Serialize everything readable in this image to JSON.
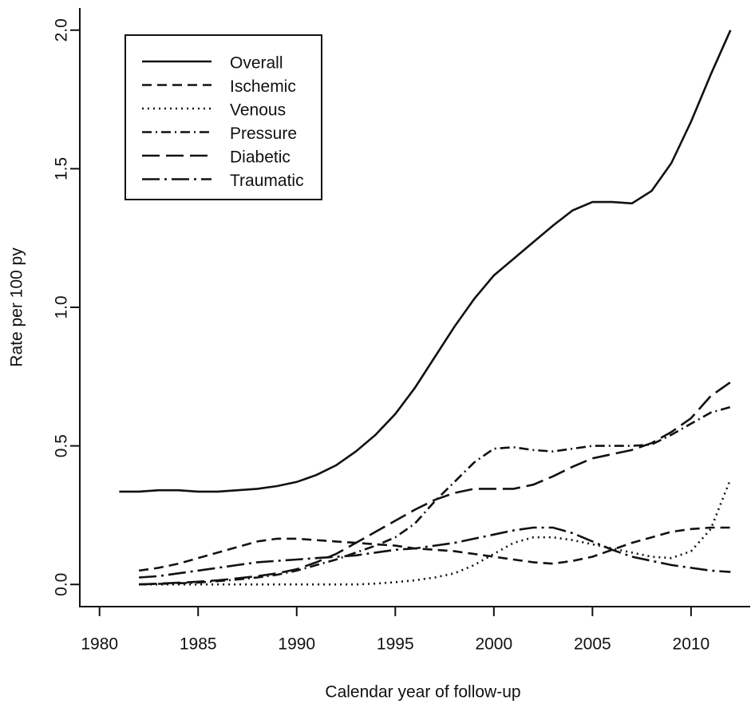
{
  "chart_data": {
    "type": "line",
    "x_label": "Calendar year of follow-up",
    "y_label": "Rate per 100 py",
    "x": [
      1981,
      1982,
      1983,
      1984,
      1985,
      1986,
      1987,
      1988,
      1989,
      1990,
      1991,
      1992,
      1993,
      1994,
      1995,
      1996,
      1997,
      1998,
      1999,
      2000,
      2001,
      2002,
      2003,
      2004,
      2005,
      2006,
      2007,
      2008,
      2009,
      2010,
      2011,
      2012
    ],
    "series": [
      {
        "name": "Overall",
        "color": "#111111",
        "dash": "none",
        "values": [
          0.335,
          0.335,
          0.34,
          0.34,
          0.335,
          0.335,
          0.34,
          0.345,
          0.355,
          0.37,
          0.395,
          0.43,
          0.48,
          0.54,
          0.615,
          0.71,
          0.82,
          0.93,
          1.03,
          1.115,
          1.175,
          1.235,
          1.295,
          1.35,
          1.38,
          1.38,
          1.375,
          1.42,
          1.52,
          1.67,
          1.84,
          2.0
        ]
      },
      {
        "name": "Ischemic",
        "color": "#111111",
        "dash": "12,7",
        "values": [
          null,
          0.05,
          0.06,
          0.075,
          0.095,
          0.115,
          0.135,
          0.155,
          0.165,
          0.165,
          0.16,
          0.155,
          0.15,
          0.145,
          0.14,
          0.13,
          0.125,
          0.12,
          0.11,
          0.1,
          0.09,
          0.08,
          0.075,
          0.085,
          0.1,
          0.125,
          0.15,
          0.17,
          0.19,
          0.2,
          0.205,
          0.205
        ]
      },
      {
        "name": "Venous",
        "color": "#111111",
        "dash": "2,5",
        "values": [
          null,
          0,
          0,
          0,
          0,
          0,
          0,
          0,
          0,
          0,
          0,
          0,
          0,
          0.003,
          0.008,
          0.015,
          0.025,
          0.04,
          0.07,
          0.11,
          0.15,
          0.17,
          0.17,
          0.16,
          0.145,
          0.13,
          0.115,
          0.1,
          0.095,
          0.12,
          0.2,
          0.38
        ]
      },
      {
        "name": "Pressure",
        "color": "#111111",
        "dash": "12,5,2,5",
        "values": [
          null,
          0,
          0.002,
          0.004,
          0.007,
          0.012,
          0.018,
          0.025,
          0.035,
          0.05,
          0.07,
          0.09,
          0.115,
          0.14,
          0.17,
          0.22,
          0.3,
          0.37,
          0.44,
          0.49,
          0.495,
          0.485,
          0.48,
          0.49,
          0.5,
          0.5,
          0.5,
          0.505,
          0.54,
          0.58,
          0.62,
          0.64
        ]
      },
      {
        "name": "Diabetic",
        "color": "#111111",
        "dash": "22,8",
        "values": [
          null,
          0,
          0.003,
          0.006,
          0.01,
          0.015,
          0.022,
          0.03,
          0.04,
          0.055,
          0.08,
          0.11,
          0.15,
          0.19,
          0.23,
          0.27,
          0.305,
          0.33,
          0.345,
          0.345,
          0.345,
          0.36,
          0.39,
          0.425,
          0.455,
          0.47,
          0.485,
          0.51,
          0.55,
          0.6,
          0.68,
          0.73
        ]
      },
      {
        "name": "Traumatic",
        "color": "#111111",
        "dash": "22,6,3,6",
        "values": [
          null,
          0.025,
          0.03,
          0.04,
          0.05,
          0.06,
          0.07,
          0.08,
          0.085,
          0.09,
          0.095,
          0.1,
          0.105,
          0.115,
          0.125,
          0.13,
          0.14,
          0.15,
          0.165,
          0.18,
          0.195,
          0.205,
          0.205,
          0.185,
          0.155,
          0.125,
          0.1,
          0.085,
          0.07,
          0.06,
          0.05,
          0.045
        ]
      }
    ],
    "xlim": [
      1979,
      2013
    ],
    "ylim": [
      -0.08,
      2.08
    ],
    "xticks": [
      1980,
      1985,
      1990,
      1995,
      2000,
      2005,
      2010
    ],
    "yticks": [
      {
        "value": 0,
        "label": "0.0"
      },
      {
        "value": 0.5,
        "label": "0.5"
      },
      {
        "value": 1,
        "label": "1.0"
      },
      {
        "value": 1.5,
        "label": "1.5"
      },
      {
        "value": 2,
        "label": "2.0"
      }
    ],
    "grid": false,
    "legend": "top-left"
  }
}
